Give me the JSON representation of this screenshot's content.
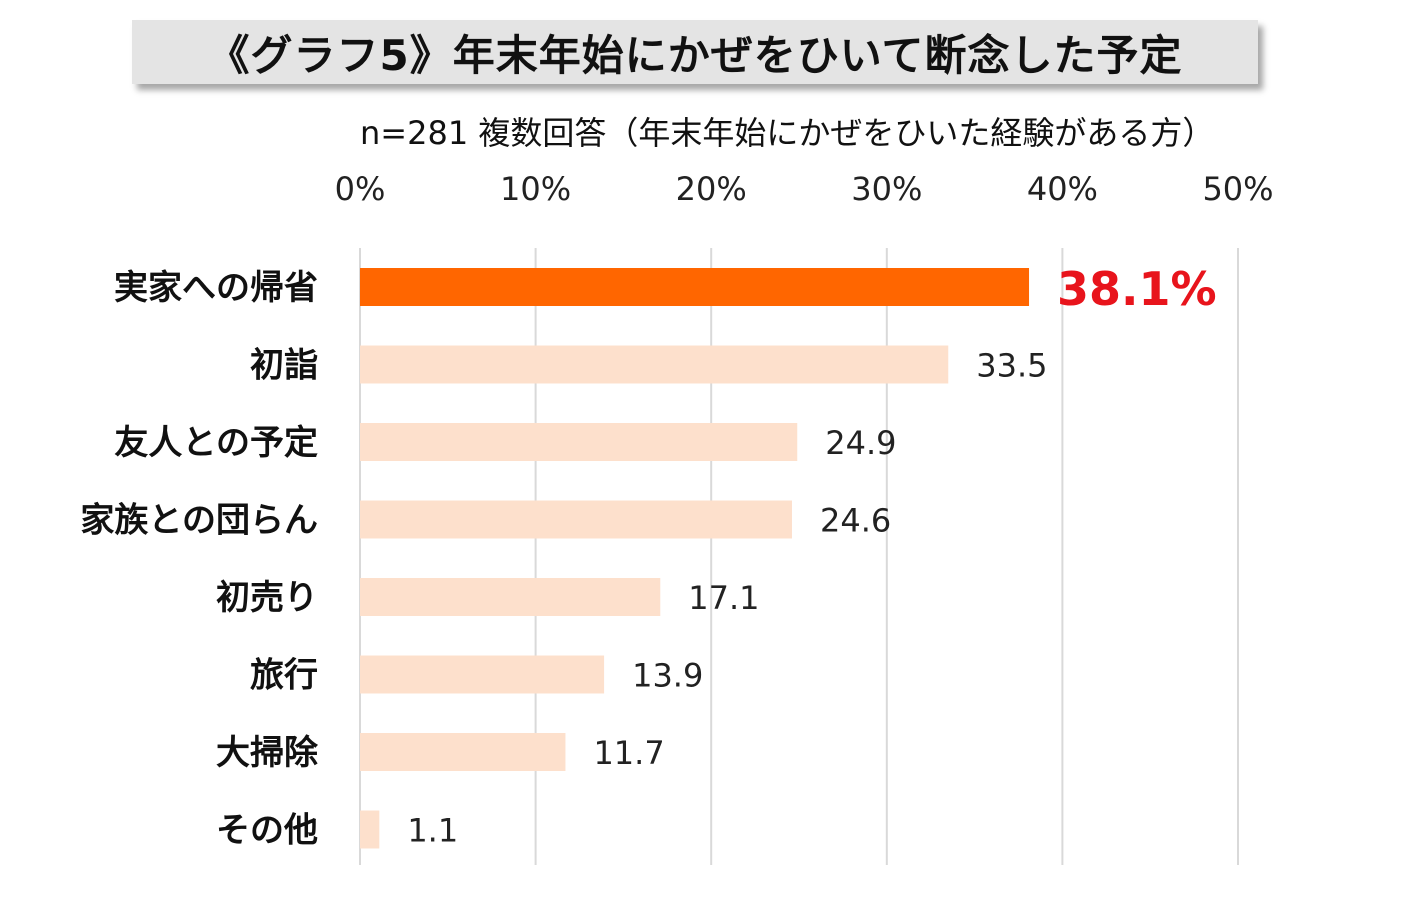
{
  "chart_data": {
    "type": "bar",
    "orientation": "horizontal",
    "title": "《グラフ5》年末年始にかぜをひいて断念した予定",
    "subtitle": "n=281  複数回答（年末年始にかぜをひいた経験がある方）",
    "categories": [
      "実家への帰省",
      "初詣",
      "友人との予定",
      "家族との団らん",
      "初売り",
      "旅行",
      "大掃除",
      "その他"
    ],
    "values": [
      38.1,
      33.5,
      24.9,
      24.6,
      17.1,
      13.9,
      11.7,
      1.1
    ],
    "value_labels": [
      "38.1%",
      "33.5",
      "24.9",
      "24.6",
      "17.1",
      "13.9",
      "11.7",
      "1.1"
    ],
    "highlight_index": 0,
    "xlim": [
      0,
      50
    ],
    "xticks": [
      0,
      10,
      20,
      30,
      40,
      50
    ],
    "xtick_labels": [
      "0%",
      "10%",
      "20%",
      "30%",
      "40%",
      "50%"
    ],
    "grid": true,
    "colors": {
      "highlight": "#ff6600",
      "bar": "#fde0cc",
      "highlight_label": "#e8141c",
      "grid": "#d9d9d9"
    }
  }
}
